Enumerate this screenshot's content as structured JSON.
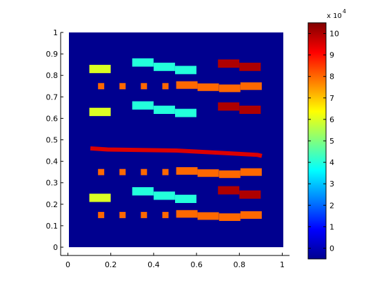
{
  "chart_data": {
    "type": "heatmap",
    "title": "",
    "xlabel": "",
    "ylabel": "",
    "xlim": [
      0,
      1
    ],
    "ylim": [
      0,
      1
    ],
    "grid": false,
    "background_value": 0,
    "x_ticks": [
      "0",
      "0.2",
      "0.4",
      "0.6",
      "0.8",
      "1"
    ],
    "y_ticks": [
      "0",
      "0.1",
      "0.2",
      "0.3",
      "0.4",
      "0.5",
      "0.6",
      "0.7",
      "0.8",
      "0.9",
      "1"
    ],
    "colorbar": {
      "colormap": "jet",
      "range": [
        -5000,
        105000
      ],
      "ticks": [
        "0",
        "1",
        "2",
        "3",
        "4",
        "5",
        "6",
        "7",
        "8",
        "9",
        "10"
      ],
      "exponent_label": "x 10",
      "exponent_power": "4"
    },
    "cells": [
      {
        "x": 0.145,
        "y": 0.83,
        "value": 60000
      },
      {
        "x": 0.145,
        "y": 0.63,
        "value": 60000
      },
      {
        "x": 0.145,
        "y": 0.23,
        "value": 60000
      },
      {
        "x": 0.345,
        "y": 0.86,
        "value": 40000
      },
      {
        "x": 0.445,
        "y": 0.84,
        "value": 40000
      },
      {
        "x": 0.545,
        "y": 0.825,
        "value": 40000
      },
      {
        "x": 0.345,
        "y": 0.66,
        "value": 40000
      },
      {
        "x": 0.445,
        "y": 0.64,
        "value": 40000
      },
      {
        "x": 0.545,
        "y": 0.625,
        "value": 40000
      },
      {
        "x": 0.345,
        "y": 0.26,
        "value": 40000
      },
      {
        "x": 0.445,
        "y": 0.24,
        "value": 40000
      },
      {
        "x": 0.545,
        "y": 0.225,
        "value": 40000
      },
      {
        "x": 0.745,
        "y": 0.855,
        "value": 100000
      },
      {
        "x": 0.845,
        "y": 0.84,
        "value": 100000
      },
      {
        "x": 0.745,
        "y": 0.655,
        "value": 100000
      },
      {
        "x": 0.845,
        "y": 0.64,
        "value": 100000
      },
      {
        "x": 0.745,
        "y": 0.265,
        "value": 100000
      },
      {
        "x": 0.845,
        "y": 0.245,
        "value": 100000
      },
      {
        "x": 0.15,
        "y": 0.75,
        "value": 80000
      },
      {
        "x": 0.25,
        "y": 0.75,
        "value": 80000
      },
      {
        "x": 0.35,
        "y": 0.75,
        "value": 80000
      },
      {
        "x": 0.45,
        "y": 0.75,
        "value": 80000
      },
      {
        "x": 0.55,
        "y": 0.755,
        "value": 80000
      },
      {
        "x": 0.65,
        "y": 0.745,
        "value": 80000
      },
      {
        "x": 0.75,
        "y": 0.74,
        "value": 80000
      },
      {
        "x": 0.85,
        "y": 0.75,
        "value": 80000
      },
      {
        "x": 0.15,
        "y": 0.35,
        "value": 80000
      },
      {
        "x": 0.25,
        "y": 0.35,
        "value": 80000
      },
      {
        "x": 0.35,
        "y": 0.35,
        "value": 80000
      },
      {
        "x": 0.45,
        "y": 0.35,
        "value": 80000
      },
      {
        "x": 0.55,
        "y": 0.355,
        "value": 80000
      },
      {
        "x": 0.65,
        "y": 0.345,
        "value": 80000
      },
      {
        "x": 0.75,
        "y": 0.34,
        "value": 80000
      },
      {
        "x": 0.85,
        "y": 0.35,
        "value": 80000
      },
      {
        "x": 0.15,
        "y": 0.15,
        "value": 80000
      },
      {
        "x": 0.25,
        "y": 0.15,
        "value": 80000
      },
      {
        "x": 0.35,
        "y": 0.15,
        "value": 80000
      },
      {
        "x": 0.45,
        "y": 0.15,
        "value": 80000
      },
      {
        "x": 0.55,
        "y": 0.155,
        "value": 80000
      },
      {
        "x": 0.65,
        "y": 0.145,
        "value": 80000
      },
      {
        "x": 0.75,
        "y": 0.14,
        "value": 80000
      },
      {
        "x": 0.85,
        "y": 0.15,
        "value": 80000
      }
    ],
    "band": {
      "value": 95000,
      "points": [
        {
          "x": 0.1,
          "y": 0.46
        },
        {
          "x": 0.18,
          "y": 0.455
        },
        {
          "x": 0.5,
          "y": 0.45
        },
        {
          "x": 0.7,
          "y": 0.44
        },
        {
          "x": 0.88,
          "y": 0.43
        },
        {
          "x": 0.9,
          "y": 0.425
        }
      ]
    }
  }
}
